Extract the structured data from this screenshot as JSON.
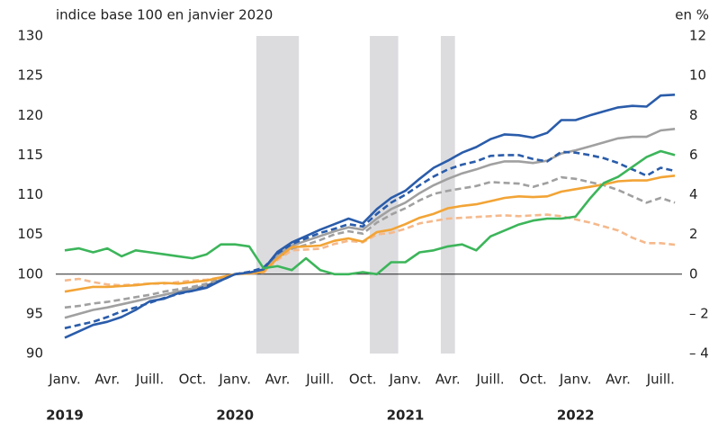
{
  "chart_data": {
    "type": "line",
    "title": "indice base 100 en janvier 2020",
    "y2_label": "en %",
    "categories": [
      "Janv.",
      null,
      null,
      "Avr.",
      null,
      null,
      "Juill.",
      null,
      null,
      "Oct.",
      null,
      null,
      "Janv.",
      null,
      null,
      "Avr.",
      null,
      null,
      "Juill.",
      null,
      null,
      "Oct.",
      null,
      null,
      "Janv.",
      null,
      null,
      "Avr.",
      null,
      null,
      "Juill.",
      null,
      null,
      "Oct.",
      null,
      null,
      "Janv.",
      null,
      null,
      "Avr.",
      null,
      null,
      "Juill.",
      null
    ],
    "x_groups": [
      {
        "label": "2019",
        "at": 0
      },
      {
        "label": "2020",
        "at": 12
      },
      {
        "label": "2021",
        "at": 24
      },
      {
        "label": "2022",
        "at": 36
      }
    ],
    "shaded_periods": [
      {
        "from": 13.5,
        "to": 16.5
      },
      {
        "from": 21.5,
        "to": 23.5
      },
      {
        "from": 26.5,
        "to": 27.5
      }
    ],
    "shade_color": "#dcdcdf",
    "ylim": [
      90,
      130
    ],
    "yticks": [
      90,
      95,
      100,
      105,
      110,
      115,
      120,
      125,
      130
    ],
    "y2lim": [
      -4,
      12
    ],
    "y2ticks": [
      {
        "value": -4,
        "label": "– 4"
      },
      {
        "value": -2,
        "label": "– 2"
      },
      0,
      2,
      4,
      6,
      8,
      10,
      12
    ],
    "y2_color": "#3cb55a",
    "reference_line": 100,
    "grid": false,
    "series": [
      {
        "color": "#a0a0a0",
        "dash": false,
        "values": [
          94.5,
          95.0,
          95.5,
          95.8,
          96.2,
          96.6,
          97.0,
          97.4,
          97.8,
          98.2,
          98.6,
          99.3,
          100.0,
          100.2,
          100.5,
          102.4,
          103.6,
          104.2,
          104.8,
          105.4,
          105.9,
          105.6,
          107.0,
          108.2,
          109.0,
          110.2,
          111.2,
          112.0,
          112.7,
          113.2,
          113.8,
          114.2,
          114.2,
          114.0,
          114.3,
          115.2,
          115.6,
          116.1,
          116.6,
          117.1,
          117.3,
          117.3,
          118.1,
          118.3
        ]
      },
      {
        "color": "#a0a0a0",
        "dash": true,
        "values": [
          95.8,
          96.0,
          96.3,
          96.5,
          96.8,
          97.1,
          97.4,
          97.8,
          98.1,
          98.4,
          98.8,
          99.4,
          100.0,
          100.2,
          100.4,
          102.0,
          103.2,
          103.7,
          104.3,
          105.0,
          105.4,
          105.1,
          106.5,
          107.5,
          108.3,
          109.3,
          110.1,
          110.5,
          110.8,
          111.1,
          111.6,
          111.5,
          111.4,
          111.0,
          111.5,
          112.2,
          112.0,
          111.6,
          111.2,
          110.6,
          109.8,
          109.0,
          109.6,
          109.0
        ]
      },
      {
        "color": "#f5b98c",
        "dash": true,
        "values": [
          99.2,
          99.4,
          99.0,
          98.7,
          98.6,
          98.7,
          98.8,
          98.8,
          99.0,
          99.2,
          99.3,
          99.6,
          100.0,
          100.1,
          100.2,
          101.8,
          103.0,
          103.1,
          103.2,
          103.8,
          104.2,
          104.0,
          105.0,
          105.2,
          105.7,
          106.4,
          106.7,
          107.0,
          107.1,
          107.2,
          107.3,
          107.4,
          107.3,
          107.4,
          107.5,
          107.3,
          106.9,
          106.5,
          106.0,
          105.5,
          104.6,
          103.9,
          103.9,
          103.7
        ]
      },
      {
        "color": "#f2a436",
        "dash": false,
        "values": [
          97.8,
          98.1,
          98.4,
          98.4,
          98.5,
          98.6,
          98.8,
          98.9,
          98.8,
          99.0,
          99.2,
          99.6,
          100.0,
          100.1,
          100.3,
          102.0,
          103.4,
          103.5,
          103.6,
          104.2,
          104.5,
          104.1,
          105.3,
          105.6,
          106.3,
          107.1,
          107.6,
          108.3,
          108.6,
          108.8,
          109.2,
          109.6,
          109.8,
          109.7,
          109.8,
          110.4,
          110.7,
          111.0,
          111.3,
          111.7,
          111.8,
          111.8,
          112.2,
          112.4
        ]
      },
      {
        "color": "#2a5caa",
        "dash": true,
        "values": [
          93.2,
          93.6,
          94.0,
          94.6,
          95.3,
          95.8,
          96.4,
          97.0,
          97.5,
          97.9,
          98.5,
          99.2,
          100.0,
          100.3,
          100.8,
          102.6,
          103.8,
          104.5,
          105.2,
          105.7,
          106.3,
          106.0,
          107.6,
          109.0,
          110.0,
          111.2,
          112.3,
          113.2,
          113.8,
          114.2,
          114.9,
          115.0,
          115.0,
          114.5,
          114.2,
          115.4,
          115.3,
          115.0,
          114.6,
          114.0,
          113.2,
          112.4,
          113.4,
          113.0
        ]
      },
      {
        "color": "#2a5caa",
        "dash": false,
        "values": [
          92.0,
          92.8,
          93.6,
          94.0,
          94.6,
          95.5,
          96.6,
          96.9,
          97.6,
          97.9,
          98.3,
          99.2,
          100.0,
          100.2,
          100.6,
          102.8,
          104.0,
          104.8,
          105.6,
          106.3,
          107.0,
          106.4,
          108.2,
          109.6,
          110.5,
          112.0,
          113.4,
          114.3,
          115.3,
          116.0,
          117.0,
          117.6,
          117.5,
          117.2,
          117.8,
          119.4,
          119.4,
          120.0,
          120.5,
          121.0,
          121.2,
          121.1,
          122.5,
          122.6
        ]
      },
      {
        "color": "#3cb55a",
        "dash": false,
        "axis": "y2",
        "values": [
          1.2,
          1.3,
          1.1,
          1.3,
          0.9,
          1.2,
          1.1,
          1.0,
          0.9,
          0.8,
          1.0,
          1.5,
          1.5,
          1.4,
          0.3,
          0.4,
          0.2,
          0.8,
          0.2,
          0.0,
          0.0,
          0.1,
          0.0,
          0.6,
          0.6,
          1.1,
          1.2,
          1.4,
          1.5,
          1.2,
          1.9,
          2.2,
          2.5,
          2.7,
          2.8,
          2.8,
          2.9,
          3.8,
          4.6,
          4.9,
          5.4,
          5.9,
          6.2,
          6.0
        ]
      }
    ]
  }
}
